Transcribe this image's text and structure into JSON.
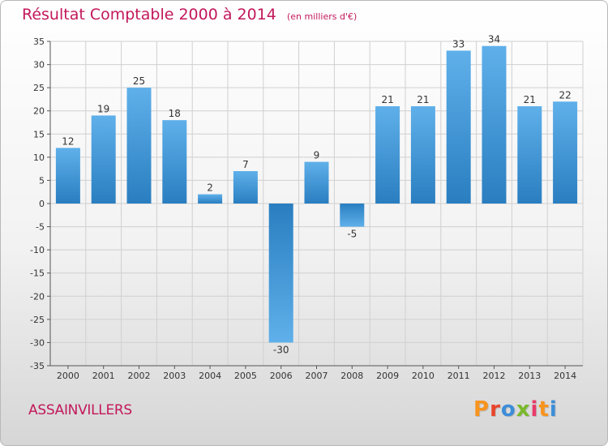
{
  "header": {
    "title": "Résultat Comptable 2000 à 2014",
    "subtitle": "(en milliers d'€)"
  },
  "footer": {
    "commune": "ASSAINVILLERS",
    "logo": "Proxiti"
  },
  "colors": {
    "title": "#c2185b",
    "bar_light": "#5fb0ea",
    "bar_dark": "#2a7ec0",
    "logo_letters": [
      "#f7941d",
      "#e8452c",
      "#3c8dd8",
      "#7ab929",
      "#e83a6a",
      "#f7941d",
      "#3c8dd8"
    ]
  },
  "chart_data": {
    "type": "bar",
    "title": "Résultat Comptable 2000 à 2014",
    "units": "(en milliers d'€)",
    "xlabel": "",
    "ylabel": "",
    "grid": true,
    "legend": "none",
    "categories": [
      "2000",
      "2001",
      "2002",
      "2003",
      "2004",
      "2005",
      "2006",
      "2007",
      "2008",
      "2009",
      "2010",
      "2011",
      "2012",
      "2013",
      "2014"
    ],
    "values": [
      12,
      19,
      25,
      18,
      2,
      7,
      -30,
      9,
      -5,
      21,
      21,
      33,
      34,
      21,
      22
    ],
    "ylim": [
      -35,
      35
    ],
    "yticks": [
      35,
      30,
      25,
      20,
      15,
      10,
      5,
      0,
      -5,
      -10,
      -15,
      -20,
      -25,
      -30,
      -35
    ]
  }
}
